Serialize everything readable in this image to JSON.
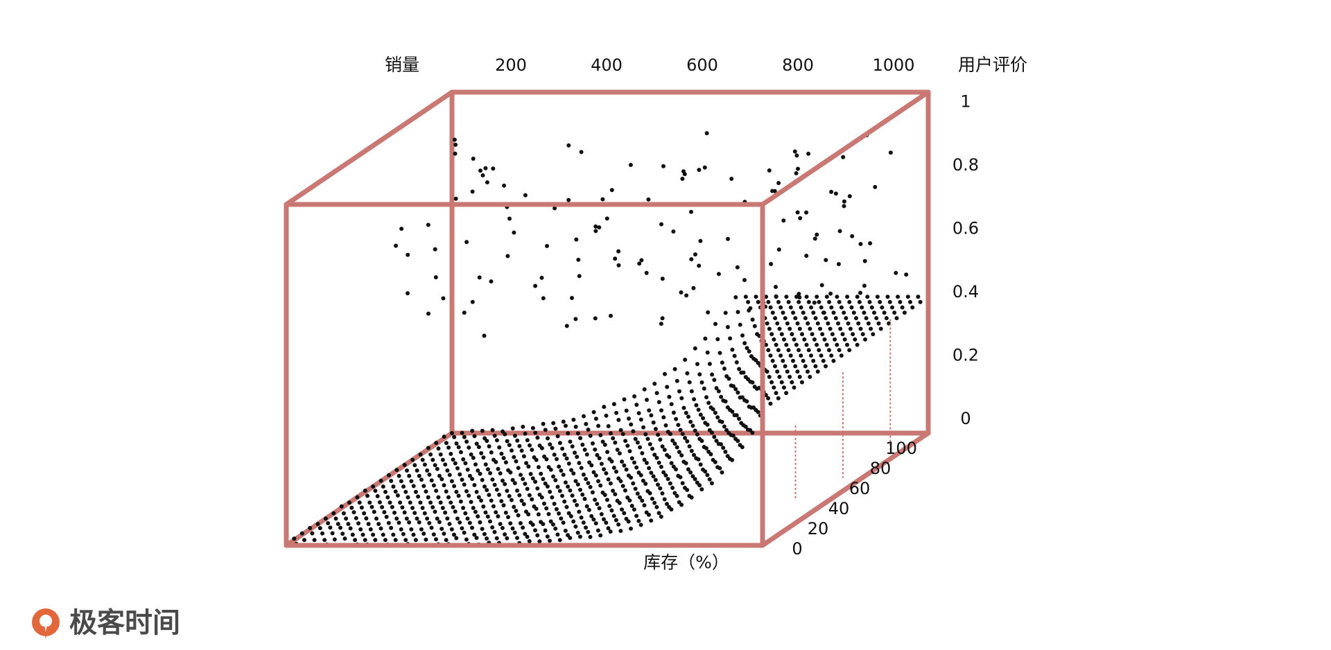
{
  "colors": {
    "box": "#c97873",
    "points": "#111111",
    "text": "#111111",
    "logo_orange": "#e2673a",
    "logo_text": "#4a4a4a"
  },
  "chart_data": {
    "type": "scatter",
    "projection": "3d",
    "x_axis": {
      "label": "销量",
      "ticks": [
        "200",
        "400",
        "600",
        "800",
        "1000"
      ],
      "range": [
        0,
        1000
      ]
    },
    "y_axis": {
      "label": "库存（%）",
      "ticks": [
        "0",
        "20",
        "40",
        "60",
        "80",
        "100"
      ],
      "range": [
        0,
        100
      ]
    },
    "z_axis": {
      "label": "用户评价",
      "ticks": [
        "0",
        "0.2",
        "0.4",
        "0.6",
        "0.8",
        "1"
      ],
      "range": [
        0,
        1
      ]
    },
    "grid": false,
    "legend": "none",
    "surface": {
      "description_of_shape": "dense grid of points near 0 rating over most of the floor, rising steeply toward the high-sales end; sparse scattered points between 0.4 and 0.9",
      "x_samples": 48,
      "y_samples": 22
    }
  },
  "logo": {
    "icon": "geekbang-logo-icon",
    "text": "极客时间"
  }
}
